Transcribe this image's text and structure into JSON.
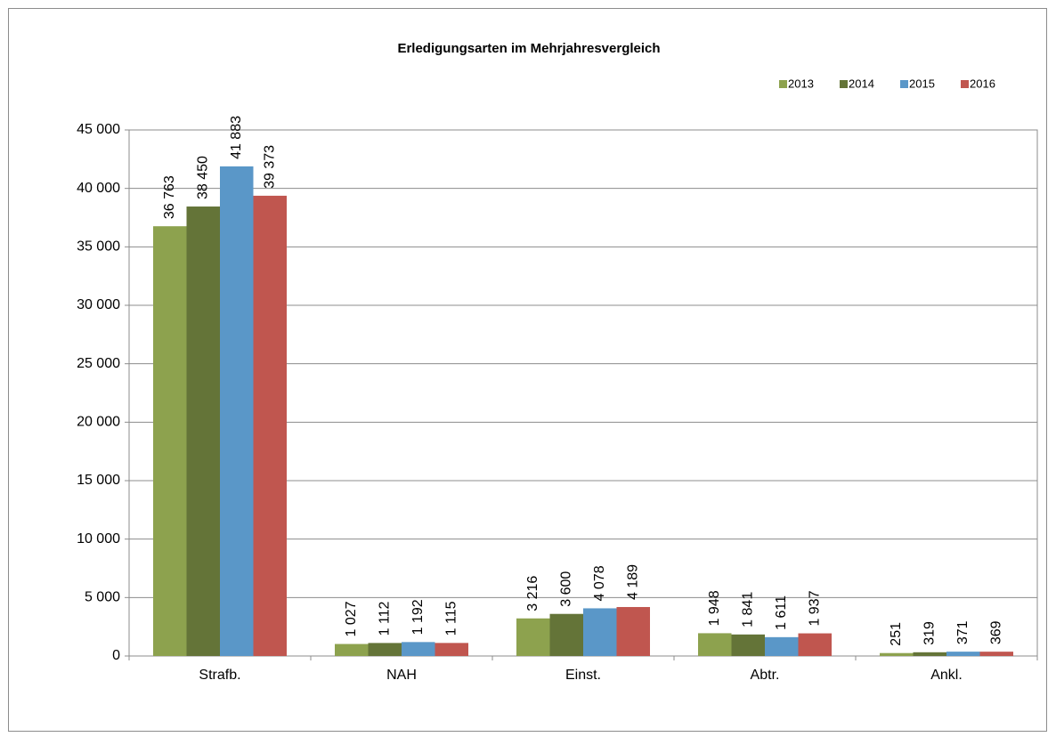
{
  "chart_data": {
    "type": "bar",
    "title": "Erledigungsarten im Mehrjahresvergleich",
    "categories": [
      "Strafb.",
      "NAH",
      "Einst.",
      "Abtr.",
      "Ankl."
    ],
    "series": [
      {
        "name": "2013",
        "color": "#8da24e",
        "values": [
          36763,
          1027,
          3216,
          1948,
          251
        ],
        "value_labels": [
          "36 763",
          "1 027",
          "3 216",
          "1 948",
          "251"
        ]
      },
      {
        "name": "2014",
        "color": "#647438",
        "values": [
          38450,
          1112,
          3600,
          1841,
          319
        ],
        "value_labels": [
          "38 450",
          "1 112",
          "3 600",
          "1 841",
          "319"
        ]
      },
      {
        "name": "2015",
        "color": "#5a97c8",
        "values": [
          41883,
          1192,
          4078,
          1611,
          371
        ],
        "value_labels": [
          "41 883",
          "1 192",
          "4 078",
          "1 611",
          "371"
        ]
      },
      {
        "name": "2016",
        "color": "#c0564f",
        "values": [
          39373,
          1115,
          4189,
          1937,
          369
        ],
        "value_labels": [
          "39 373",
          "1 115",
          "4 189",
          "1 937",
          "369"
        ]
      }
    ],
    "ylim": [
      0,
      45000
    ],
    "yticks": [
      0,
      {
        "value": 5000,
        "label": "5 000"
      },
      {
        "value": 10000,
        "label": "10 000"
      },
      {
        "value": 15000,
        "label": "15 000"
      },
      {
        "value": 20000,
        "label": "20 000"
      },
      {
        "value": 25000,
        "label": "25 000"
      },
      {
        "value": 30000,
        "label": "30 000"
      },
      {
        "value": 35000,
        "label": "35 000"
      },
      {
        "value": 40000,
        "label": "40 000"
      },
      {
        "value": 45000,
        "label": "45 000"
      }
    ],
    "grid": true,
    "legend": "top-right"
  }
}
